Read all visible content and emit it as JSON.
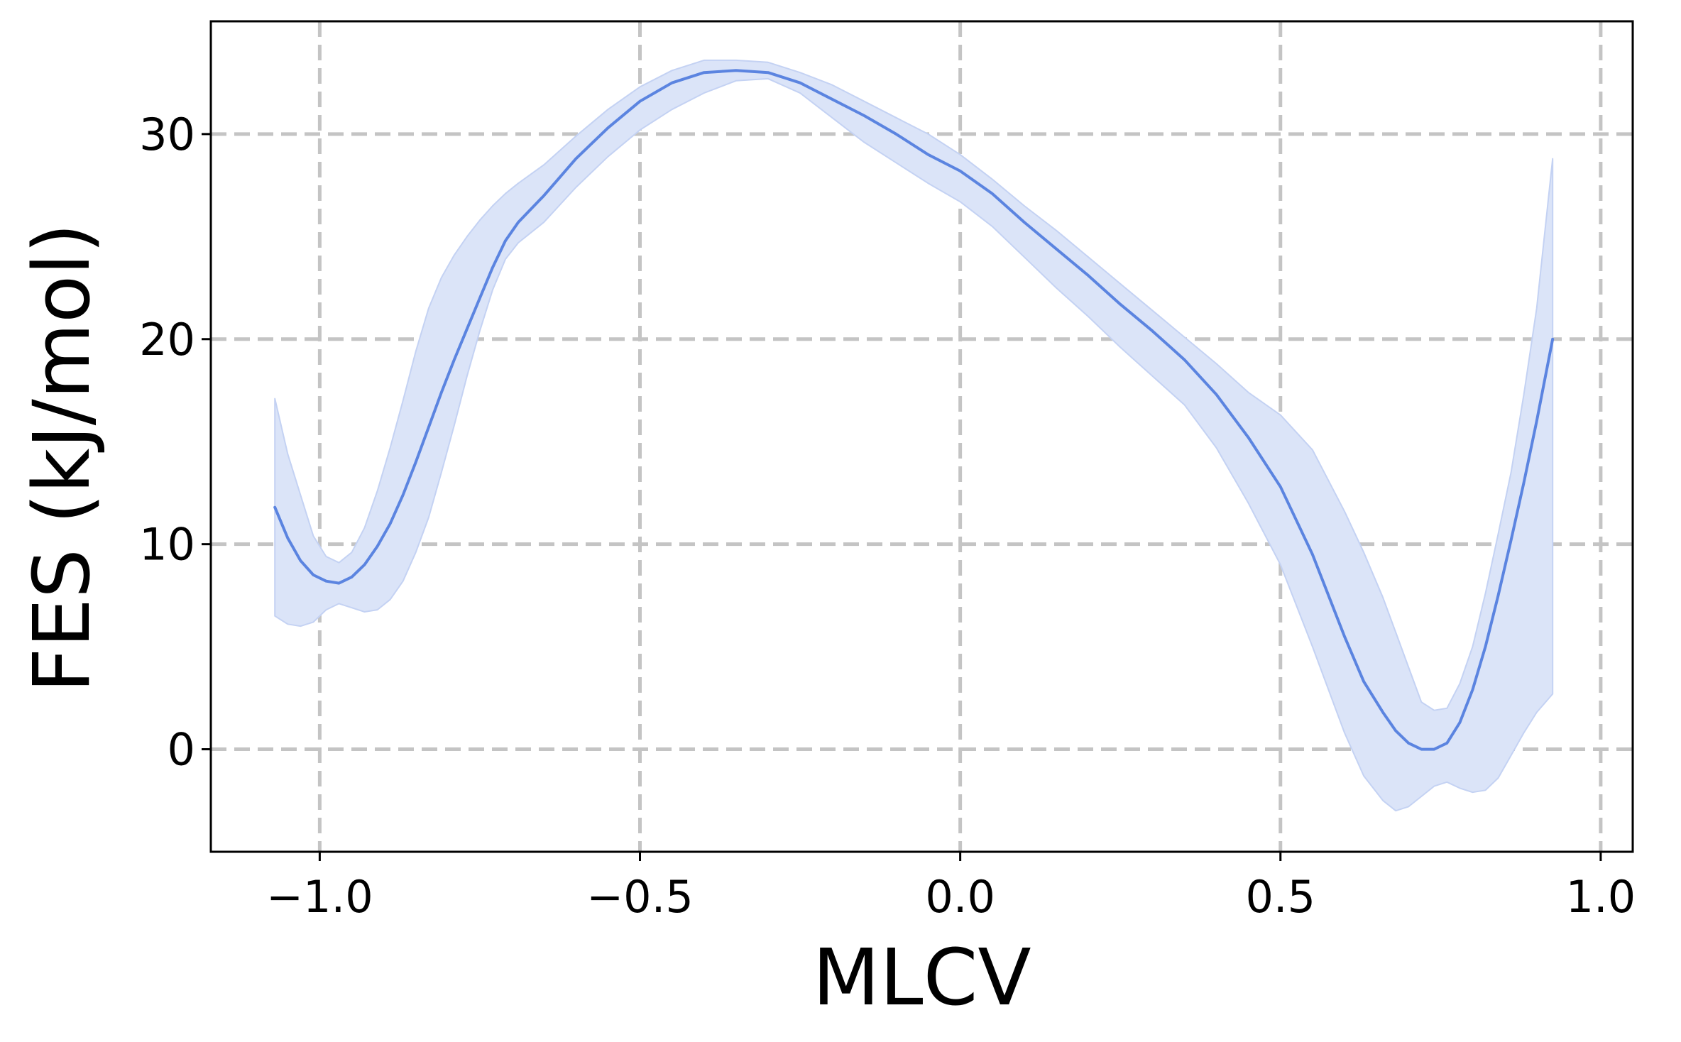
{
  "chart_data": {
    "type": "line",
    "title": "",
    "xlabel": "MLCV",
    "ylabel": "FES (kJ/mol)",
    "xlim": [
      -1.17,
      1.05
    ],
    "ylim": [
      -5,
      35.5
    ],
    "xticks": [
      -1.0,
      -0.5,
      0.0,
      0.5,
      1.0
    ],
    "xtick_labels": [
      "−1.0",
      "−0.5",
      "0.0",
      "0.5",
      "1.0"
    ],
    "yticks": [
      0,
      10,
      20,
      30
    ],
    "ytick_labels": [
      "0",
      "10",
      "20",
      "30"
    ],
    "grid": true,
    "grid_style": "dashed",
    "legend": false,
    "colors": {
      "line": "#5b84e0",
      "band_fill": "#dbe4f8",
      "band_edge": "#c4d2f3",
      "grid": "#c4c4c4",
      "axes": "#000000"
    },
    "series": [
      {
        "x": [
          -1.07,
          -1.05,
          -1.03,
          -1.01,
          -0.99,
          -0.97,
          -0.95,
          -0.93,
          -0.91,
          -0.89,
          -0.87,
          -0.85,
          -0.83,
          -0.81,
          -0.79,
          -0.77,
          -0.75,
          -0.73,
          -0.71,
          -0.69,
          -0.65,
          -0.6,
          -0.55,
          -0.5,
          -0.45,
          -0.4,
          -0.35,
          -0.3,
          -0.25,
          -0.2,
          -0.15,
          -0.1,
          -0.05,
          0.0,
          0.05,
          0.1,
          0.15,
          0.2,
          0.25,
          0.3,
          0.35,
          0.4,
          0.45,
          0.5,
          0.55,
          0.6,
          0.63,
          0.66,
          0.68,
          0.7,
          0.72,
          0.74,
          0.76,
          0.78,
          0.8,
          0.82,
          0.84,
          0.86,
          0.88,
          0.9,
          0.925
        ],
        "values": [
          11.8,
          10.3,
          9.2,
          8.5,
          8.2,
          8.1,
          8.4,
          9.0,
          9.9,
          11.0,
          12.4,
          14.0,
          15.7,
          17.4,
          19.0,
          20.5,
          22.0,
          23.5,
          24.8,
          25.7,
          27.0,
          28.8,
          30.3,
          31.6,
          32.5,
          33.0,
          33.1,
          33.0,
          32.5,
          31.7,
          30.9,
          30.0,
          29.0,
          28.2,
          27.1,
          25.7,
          24.4,
          23.1,
          21.7,
          20.4,
          19.0,
          17.3,
          15.2,
          12.8,
          9.5,
          5.5,
          3.3,
          1.8,
          0.9,
          0.3,
          0.0,
          0.0,
          0.3,
          1.3,
          2.9,
          5.0,
          7.5,
          10.2,
          13.0,
          16.0,
          20.0
        ],
        "band_upper": [
          17.1,
          14.4,
          12.4,
          10.4,
          9.4,
          9.1,
          9.6,
          10.8,
          12.6,
          14.7,
          17.0,
          19.4,
          21.5,
          23.0,
          24.1,
          25.0,
          25.8,
          26.5,
          27.1,
          27.6,
          28.5,
          29.9,
          31.2,
          32.3,
          33.1,
          33.6,
          33.6,
          33.5,
          33.0,
          32.4,
          31.6,
          30.8,
          30.0,
          29.0,
          27.8,
          26.5,
          25.3,
          24.0,
          22.7,
          21.4,
          20.1,
          18.8,
          17.4,
          16.3,
          14.6,
          11.6,
          9.6,
          7.4,
          5.7,
          4.0,
          2.3,
          1.9,
          2.0,
          3.2,
          5.0,
          7.6,
          10.5,
          13.5,
          17.3,
          21.5,
          28.8
        ],
        "band_lower": [
          6.5,
          6.1,
          6.0,
          6.2,
          6.8,
          7.1,
          6.9,
          6.7,
          6.8,
          7.3,
          8.2,
          9.6,
          11.3,
          13.5,
          15.8,
          18.2,
          20.4,
          22.4,
          23.9,
          24.7,
          25.7,
          27.4,
          28.9,
          30.2,
          31.2,
          32.0,
          32.6,
          32.7,
          32.0,
          30.8,
          29.6,
          28.6,
          27.6,
          26.7,
          25.5,
          24.0,
          22.5,
          21.1,
          19.6,
          18.2,
          16.8,
          14.7,
          12.0,
          9.0,
          5.0,
          0.8,
          -1.3,
          -2.5,
          -3.0,
          -2.8,
          -2.3,
          -1.8,
          -1.6,
          -1.9,
          -2.1,
          -2.0,
          -1.4,
          -0.3,
          0.8,
          1.8,
          2.7
        ]
      }
    ]
  }
}
